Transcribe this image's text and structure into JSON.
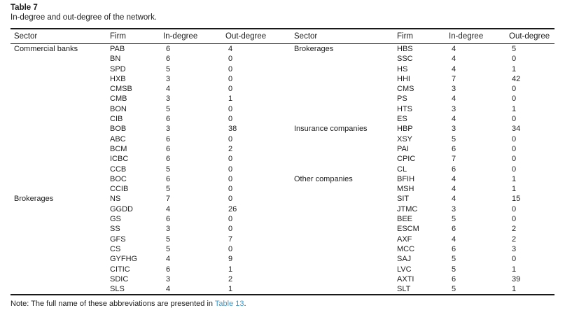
{
  "table": {
    "label": "Table 7",
    "caption": "In-degree and out-degree of the network.",
    "columns": [
      "Sector",
      "Firm",
      "In-degree",
      "Out-degree"
    ],
    "left_rows": [
      [
        "Commercial banks",
        "PAB",
        6,
        4
      ],
      [
        "",
        "BN",
        6,
        0
      ],
      [
        "",
        "SPD",
        5,
        0
      ],
      [
        "",
        "HXB",
        3,
        0
      ],
      [
        "",
        "CMSB",
        4,
        0
      ],
      [
        "",
        "CMB",
        3,
        1
      ],
      [
        "",
        "BON",
        5,
        0
      ],
      [
        "",
        "CIB",
        6,
        0
      ],
      [
        "",
        "BOB",
        3,
        38
      ],
      [
        "",
        "ABC",
        6,
        0
      ],
      [
        "",
        "BCM",
        6,
        2
      ],
      [
        "",
        "ICBC",
        6,
        0
      ],
      [
        "",
        "CCB",
        5,
        0
      ],
      [
        "",
        "BOC",
        6,
        0
      ],
      [
        "",
        "CCIB",
        5,
        0
      ],
      [
        "Brokerages",
        "NS",
        7,
        0
      ],
      [
        "",
        "GGDD",
        4,
        26
      ],
      [
        "",
        "GS",
        6,
        0
      ],
      [
        "",
        "SS",
        3,
        0
      ],
      [
        "",
        "GFS",
        5,
        7
      ],
      [
        "",
        "CS",
        5,
        0
      ],
      [
        "",
        "GYFHG",
        4,
        9
      ],
      [
        "",
        "CITIC",
        6,
        1
      ],
      [
        "",
        "SDIC",
        3,
        2
      ],
      [
        "",
        "SLS",
        4,
        1
      ]
    ],
    "right_rows": [
      [
        "Brokerages",
        "HBS",
        4,
        5
      ],
      [
        "",
        "SSC",
        4,
        0
      ],
      [
        "",
        "HS",
        4,
        1
      ],
      [
        "",
        "HHI",
        7,
        42
      ],
      [
        "",
        "CMS",
        3,
        0
      ],
      [
        "",
        "PS",
        4,
        0
      ],
      [
        "",
        "HTS",
        3,
        1
      ],
      [
        "",
        "ES",
        4,
        0
      ],
      [
        "Insurance companies",
        "HBP",
        3,
        34
      ],
      [
        "",
        "XSY",
        5,
        0
      ],
      [
        "",
        "PAI",
        6,
        0
      ],
      [
        "",
        "CPIC",
        7,
        0
      ],
      [
        "",
        "CL",
        6,
        0
      ],
      [
        "Other companies",
        "BFIH",
        4,
        1
      ],
      [
        "",
        "MSH",
        4,
        1
      ],
      [
        "",
        "SIT",
        4,
        15
      ],
      [
        "",
        "JTMC",
        3,
        0
      ],
      [
        "",
        "BEE",
        5,
        0
      ],
      [
        "",
        "ESCM",
        6,
        2
      ],
      [
        "",
        "AXF",
        4,
        2
      ],
      [
        "",
        "MCC",
        6,
        3
      ],
      [
        "",
        "SAJ",
        5,
        0
      ],
      [
        "",
        "LVC",
        5,
        1
      ],
      [
        "",
        "AXTI",
        6,
        39
      ],
      [
        "",
        "SLT",
        5,
        1
      ]
    ],
    "note_prefix": "Note: The full name of these abbreviations are presented in ",
    "note_link": "Table 13",
    "note_suffix": ".",
    "link_color": "#3d9ac9"
  }
}
